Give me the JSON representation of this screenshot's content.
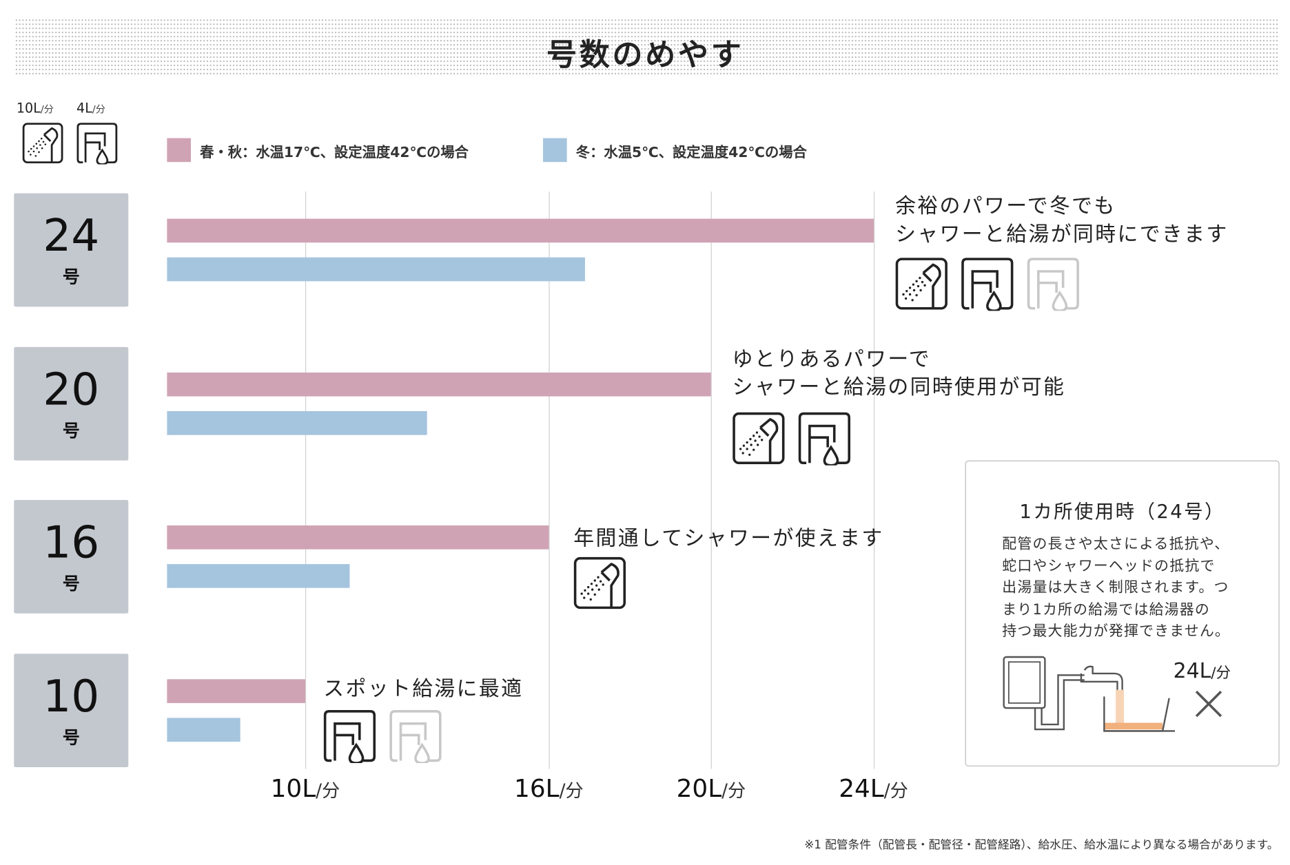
{
  "title": "号数のめやす",
  "unit_header": [
    {
      "value": "10L",
      "unit": "/分",
      "icon": "shower-icon"
    },
    {
      "value": "4L",
      "unit": "/分",
      "icon": "faucet-icon"
    }
  ],
  "legend": [
    {
      "label": "春・秋：水温17℃、設定温度42℃の場合",
      "color": "#cfa3b4"
    },
    {
      "label": "冬：水温5℃、設定温度42℃の場合",
      "color": "#a5c4de"
    }
  ],
  "rows": [
    {
      "number": "24",
      "unit": "号",
      "annotation": [
        "余裕のパワーで冬でも",
        "シャワーと給湯が同時にできます"
      ],
      "icons": [
        {
          "type": "shower",
          "active": true
        },
        {
          "type": "faucet",
          "active": true
        },
        {
          "type": "faucet",
          "active": false
        }
      ]
    },
    {
      "number": "20",
      "unit": "号",
      "annotation": [
        "ゆとりあるパワーで",
        "シャワーと給湯の同時使用が可能"
      ],
      "icons": [
        {
          "type": "shower",
          "active": true
        },
        {
          "type": "faucet",
          "active": true
        }
      ]
    },
    {
      "number": "16",
      "unit": "号",
      "annotation": [
        "年間通してシャワーが使えます"
      ],
      "icons": [
        {
          "type": "shower",
          "active": true
        }
      ]
    },
    {
      "number": "10",
      "unit": "号",
      "annotation": [
        "スポット給湯に最適"
      ],
      "icons": [
        {
          "type": "faucet",
          "active": true
        },
        {
          "type": "faucet",
          "active": false
        }
      ]
    }
  ],
  "chart_data": {
    "type": "bar",
    "orientation": "horizontal",
    "categories": [
      "24号",
      "20号",
      "16号",
      "10号"
    ],
    "series": [
      {
        "name": "春・秋：水温17℃、設定温度42℃の場合",
        "color": "#cfa3b4",
        "values": [
          24,
          20,
          16,
          10
        ]
      },
      {
        "name": "冬：水温5℃、設定温度42℃の場合",
        "color": "#a5c4de",
        "values": [
          16.9,
          13.0,
          11.1,
          8.4
        ]
      }
    ],
    "x_ticks": [
      10,
      16,
      20,
      24
    ],
    "x_tick_suffix": "L",
    "x_tick_unit": "/分",
    "grid": true
  },
  "infobox": {
    "title": "1カ所使用時（24号）",
    "body": [
      "配管の長さや太さによる抵抗や、",
      "蛇口やシャワーヘッドの抵抗で",
      "出湯量は大きく制限されます。つ",
      "まり1カ所の給湯では給湯器の",
      "持つ最大能力が発揮できません。"
    ],
    "flow_value": "24L",
    "flow_unit": "/分",
    "flow_status_icon": "cross-icon"
  },
  "footnote": "※1 配管条件（配管長・配管径・配管経路）、給水圧、給水温により異なる場合があります。"
}
